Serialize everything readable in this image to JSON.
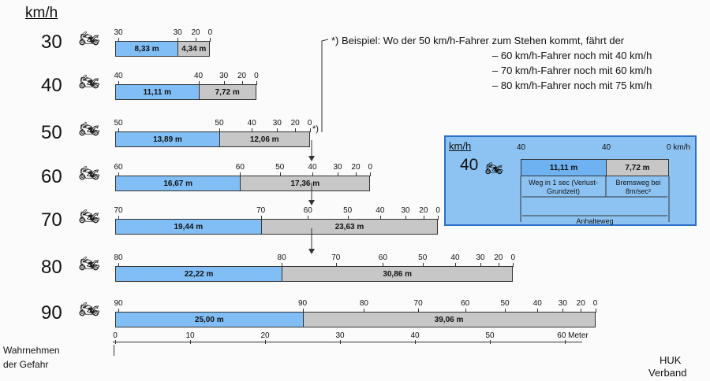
{
  "unit_label": "km/h",
  "rows": [
    {
      "speed": "30",
      "react_label": "8,33 m",
      "brake_label": "4,34 m",
      "react_m": 8.33,
      "brake_m": 4.34,
      "ticks": [
        "30",
        "30",
        "20",
        "0"
      ]
    },
    {
      "speed": "40",
      "react_label": "11,11 m",
      "brake_label": "7,72 m",
      "react_m": 11.11,
      "brake_m": 7.72,
      "ticks": [
        "40",
        "40",
        "30",
        "20",
        "0"
      ]
    },
    {
      "speed": "50",
      "react_label": "13,89 m",
      "brake_label": "12,06 m",
      "react_m": 13.89,
      "brake_m": 12.06,
      "ticks": [
        "50",
        "50",
        "40",
        "30",
        "20",
        "0"
      ]
    },
    {
      "speed": "60",
      "react_label": "16,67 m",
      "brake_label": "17,36 m",
      "react_m": 16.67,
      "brake_m": 17.36,
      "ticks": [
        "60",
        "60",
        "50",
        "40",
        "30",
        "20",
        "0"
      ]
    },
    {
      "speed": "70",
      "react_label": "19,44 m",
      "brake_label": "23,63 m",
      "react_m": 19.44,
      "brake_m": 23.63,
      "ticks": [
        "70",
        "70",
        "60",
        "50",
        "40",
        "30",
        "20",
        "0"
      ]
    },
    {
      "speed": "80",
      "react_label": "22,22 m",
      "brake_label": "30,86 m",
      "react_m": 22.22,
      "brake_m": 30.86,
      "ticks": [
        "80",
        "80",
        "70",
        "60",
        "50",
        "40",
        "30",
        "20",
        "0"
      ]
    },
    {
      "speed": "90",
      "react_label": "25,00 m",
      "brake_label": "39,06 m",
      "react_m": 25.0,
      "brake_m": 39.06,
      "ticks": [
        "90",
        "90",
        "80",
        "70",
        "60",
        "50",
        "40",
        "30",
        "20",
        "0"
      ]
    }
  ],
  "note": {
    "line1": "*) Beispiel: Wo der 50 km/h-Fahrer zum Stehen kommt, fährt der",
    "line2": "– 60 km/h-Fahrer noch mit 40 km/h",
    "line3": "– 70 km/h-Fahrer noch mit 60 km/h",
    "line4": "– 80 km/h-Fahrer noch mit 75 km/h",
    "marker": "*)"
  },
  "inset": {
    "unit": "km/h",
    "speed": "40",
    "tick_left": "40",
    "tick_mid": "40",
    "tick_right": "0 km/h",
    "react_value": "11,11 m",
    "brake_value": "7,72 m",
    "react_caption": "Weg in 1 sec (Verlust-Grundzeit)",
    "brake_caption": "Bremsweg bei 8m/sec²",
    "total_caption": "Anhalteweg"
  },
  "axis": {
    "ticks": [
      "0",
      "10",
      "20",
      "30",
      "40",
      "50",
      "60 Meter"
    ],
    "caption1": "Wahrnehmen",
    "caption2": "der Gefahr"
  },
  "source": {
    "line1": "HUK",
    "line2": "Verband"
  },
  "colors": {
    "reaction": "#80bef5",
    "braking": "#c7c7c7",
    "inset_bg": "#8cc3f2",
    "inset_border": "#2c71c7"
  }
}
